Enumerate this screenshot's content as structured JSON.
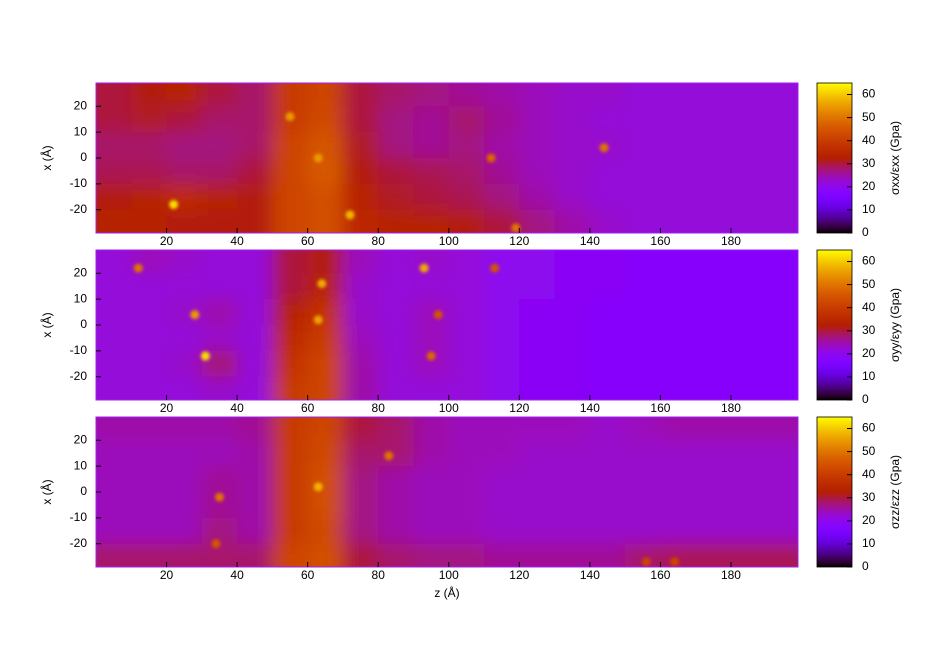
{
  "chart_data": [
    {
      "type": "heatmap",
      "colormap": "gnuplot",
      "xlabel": null,
      "ylabel": "x (Å)",
      "colorbar_label": "σxx/εxx (Gpa)",
      "xlim": [
        0,
        199
      ],
      "ylim": [
        -29,
        29
      ],
      "xticks": [
        20,
        40,
        60,
        80,
        100,
        120,
        140,
        160,
        180
      ],
      "yticks": [
        -20,
        -10,
        0,
        10,
        20
      ],
      "clim": [
        0,
        65
      ],
      "cticks": [
        0,
        10,
        20,
        30,
        40,
        50,
        60
      ],
      "x": [
        5,
        15,
        25,
        35,
        45,
        55,
        65,
        75,
        85,
        95,
        105,
        115,
        125,
        135,
        145,
        155,
        165,
        175,
        185,
        195
      ],
      "y": [
        25,
        15,
        5,
        -5,
        -15,
        -25
      ],
      "z": [
        [
          30,
          32,
          33,
          30,
          28,
          40,
          42,
          30,
          28,
          27,
          26,
          25,
          24,
          23,
          23,
          22,
          22,
          22,
          22,
          22
        ],
        [
          30,
          31,
          30,
          28,
          28,
          40,
          43,
          30,
          27,
          26,
          28,
          26,
          24,
          23,
          22,
          22,
          22,
          22,
          22,
          22
        ],
        [
          28,
          28,
          27,
          27,
          28,
          42,
          45,
          31,
          27,
          26,
          27,
          25,
          24,
          23,
          23,
          22,
          22,
          22,
          22,
          22
        ],
        [
          29,
          29,
          28,
          28,
          30,
          42,
          46,
          32,
          30,
          29,
          28,
          26,
          24,
          23,
          22,
          22,
          22,
          22,
          22,
          22
        ],
        [
          32,
          33,
          36,
          33,
          32,
          42,
          44,
          34,
          31,
          30,
          29,
          27,
          25,
          23,
          22,
          22,
          22,
          22,
          22,
          22
        ],
        [
          33,
          33,
          32,
          32,
          32,
          42,
          44,
          35,
          33,
          33,
          32,
          30,
          27,
          25,
          23,
          22,
          22,
          22,
          22,
          22
        ]
      ],
      "peaks": {
        "x": [
          22,
          55,
          72,
          63,
          144,
          119,
          112
        ],
        "y": [
          -18,
          16,
          -22,
          0,
          4,
          -27,
          0
        ],
        "values": [
          62,
          55,
          58,
          55,
          50,
          50,
          48
        ]
      }
    },
    {
      "type": "heatmap",
      "colormap": "gnuplot",
      "xlabel": null,
      "ylabel": "x (Å)",
      "colorbar_label": "σyy/εyy (Gpa)",
      "xlim": [
        0,
        199
      ],
      "ylim": [
        -29,
        29
      ],
      "xticks": [
        20,
        40,
        60,
        80,
        100,
        120,
        140,
        160,
        180
      ],
      "yticks": [
        -20,
        -10,
        0,
        10,
        20
      ],
      "clim": [
        0,
        65
      ],
      "cticks": [
        0,
        10,
        20,
        30,
        40,
        50,
        60
      ],
      "x": [
        5,
        15,
        25,
        35,
        45,
        55,
        65,
        75,
        85,
        95,
        105,
        115,
        125,
        135,
        145,
        155,
        165,
        175,
        185,
        195
      ],
      "y": [
        25,
        15,
        5,
        -5,
        -15,
        -25
      ],
      "z": [
        [
          22,
          24,
          23,
          22,
          22,
          30,
          32,
          24,
          22,
          23,
          22,
          20,
          20,
          19,
          19,
          18,
          18,
          18,
          18,
          18
        ],
        [
          22,
          22,
          22,
          22,
          22,
          30,
          33,
          23,
          22,
          22,
          22,
          20,
          20,
          19,
          19,
          18,
          18,
          18,
          18,
          18
        ],
        [
          22,
          22,
          23,
          25,
          22,
          33,
          38,
          23,
          22,
          24,
          22,
          20,
          19,
          19,
          18,
          18,
          18,
          18,
          18,
          18
        ],
        [
          22,
          22,
          22,
          23,
          22,
          36,
          40,
          24,
          22,
          24,
          22,
          20,
          19,
          19,
          18,
          18,
          18,
          18,
          18,
          18
        ],
        [
          22,
          22,
          23,
          28,
          22,
          38,
          42,
          25,
          22,
          24,
          22,
          20,
          19,
          19,
          18,
          18,
          18,
          18,
          18,
          18
        ],
        [
          22,
          22,
          22,
          23,
          22,
          40,
          42,
          25,
          22,
          22,
          22,
          20,
          19,
          19,
          18,
          18,
          18,
          18,
          18,
          18
        ]
      ],
      "peaks": {
        "x": [
          12,
          31,
          28,
          64,
          93,
          63,
          97,
          95,
          113
        ],
        "y": [
          22,
          -12,
          4,
          16,
          22,
          2,
          4,
          -12,
          22
        ],
        "values": [
          50,
          62,
          55,
          57,
          57,
          56,
          45,
          48,
          45
        ]
      }
    },
    {
      "type": "heatmap",
      "colormap": "gnuplot",
      "xlabel": "z (Å)",
      "ylabel": "x (Å)",
      "colorbar_label": "σzz/εzz (Gpa)",
      "xlim": [
        0,
        199
      ],
      "ylim": [
        -29,
        29
      ],
      "xticks": [
        20,
        40,
        60,
        80,
        100,
        120,
        140,
        160,
        180
      ],
      "yticks": [
        -20,
        -10,
        0,
        10,
        20
      ],
      "clim": [
        0,
        65
      ],
      "cticks": [
        0,
        10,
        20,
        30,
        40,
        50,
        60
      ],
      "x": [
        5,
        15,
        25,
        35,
        45,
        55,
        65,
        75,
        85,
        95,
        105,
        115,
        125,
        135,
        145,
        155,
        165,
        175,
        185,
        195
      ],
      "y": [
        25,
        15,
        5,
        -5,
        -15,
        -25
      ],
      "z": [
        [
          25,
          25,
          25,
          25,
          26,
          40,
          42,
          30,
          28,
          25,
          24,
          24,
          24,
          24,
          23,
          24,
          25,
          25,
          25,
          25
        ],
        [
          24,
          24,
          24,
          24,
          25,
          40,
          43,
          28,
          28,
          25,
          24,
          24,
          23,
          23,
          23,
          23,
          23,
          23,
          23,
          23
        ],
        [
          24,
          24,
          24,
          26,
          25,
          40,
          44,
          27,
          25,
          24,
          24,
          23,
          23,
          23,
          23,
          23,
          23,
          23,
          23,
          23
        ],
        [
          24,
          24,
          24,
          26,
          25,
          40,
          44,
          27,
          25,
          24,
          24,
          23,
          23,
          23,
          23,
          23,
          23,
          23,
          23,
          23
        ],
        [
          24,
          24,
          24,
          27,
          25,
          40,
          43,
          27,
          25,
          24,
          24,
          23,
          23,
          23,
          23,
          23,
          23,
          23,
          23,
          23
        ],
        [
          28,
          28,
          28,
          28,
          28,
          42,
          44,
          30,
          28,
          27,
          27,
          26,
          26,
          26,
          26,
          28,
          29,
          29,
          29,
          29
        ]
      ],
      "peaks": {
        "x": [
          63,
          83,
          35,
          34,
          156,
          164
        ],
        "y": [
          2,
          14,
          -2,
          -20,
          -27,
          -27
        ],
        "values": [
          58,
          50,
          50,
          45,
          42,
          42
        ]
      }
    }
  ]
}
